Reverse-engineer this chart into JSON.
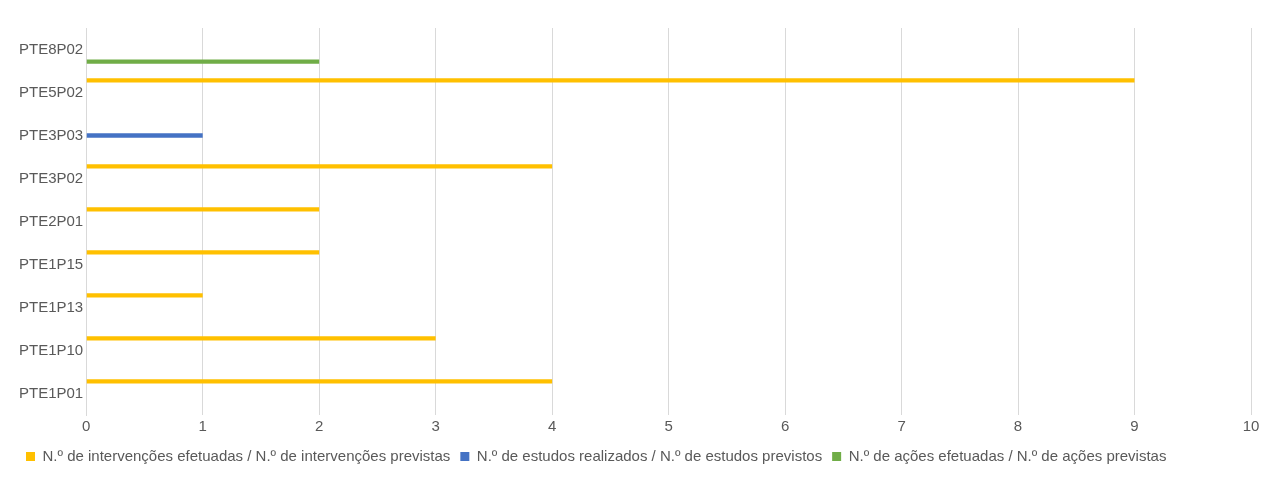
{
  "chart_data": {
    "type": "bar",
    "orientation": "horizontal",
    "categories": [
      "PTE8P02",
      "PTE5P02",
      "PTE3P03",
      "PTE3P02",
      "PTE2P01",
      "PTE1P15",
      "PTE1P13",
      "PTE1P10",
      "PTE1P01"
    ],
    "series": [
      {
        "name": "N.º de intervenções efetuadas / N.º de intervenções previstas",
        "color": "#ffc000",
        "values": [
          null,
          9,
          null,
          4,
          2,
          2,
          1,
          3,
          4
        ]
      },
      {
        "name": "N.º de estudos realizados / N.º de estudos previstos",
        "color": "#4472c4",
        "values": [
          null,
          null,
          1,
          null,
          null,
          null,
          null,
          null,
          null
        ]
      },
      {
        "name": "N.º de ações efetuadas / N.º de ações previstas",
        "color": "#70ad47",
        "values": [
          2,
          null,
          null,
          null,
          null,
          null,
          null,
          null,
          null
        ]
      }
    ],
    "xlim": [
      0,
      10
    ],
    "xticks": [
      0,
      1,
      2,
      3,
      4,
      5,
      6,
      7,
      8,
      9,
      10
    ],
    "grid": "x",
    "legend": "bottom"
  }
}
